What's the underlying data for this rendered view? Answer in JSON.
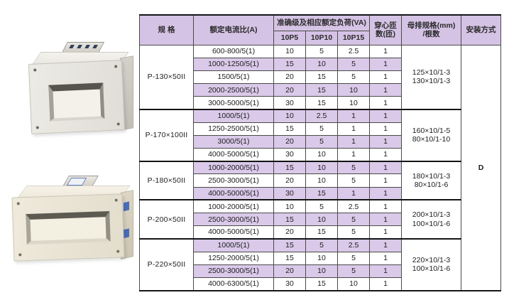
{
  "table": {
    "headers": {
      "spec": "规  格",
      "ratio": "额定电流比(A)",
      "accuracy_group": "准确级及相应额定负荷(VA)",
      "p5": "10P5",
      "p10": "10P10",
      "p15": "10P15",
      "turns_line1": "穿心匝",
      "turns_line2": "数(匝)",
      "busbar_line1": "母排规格(mm)",
      "busbar_line2": "/根数",
      "install": "安装方式"
    },
    "install_value": "D",
    "colors": {
      "band": "#dac9e9",
      "header_bg": "#d5c3e5",
      "grid": "#4a4a4a",
      "heavy_line": "#141414"
    },
    "groups": [
      {
        "spec": "P-130×50II",
        "busbar": [
          "125×10/1-3",
          "130×10/1-3"
        ],
        "rows": [
          {
            "ratio": "600-800/5(1)",
            "p5": "10",
            "p10": "5",
            "p15": "2.5",
            "turns": "1"
          },
          {
            "ratio": "1000-1250/5(1)",
            "p5": "15",
            "p10": "10",
            "p15": "5",
            "turns": "1"
          },
          {
            "ratio": "1500/5(1)",
            "p5": "20",
            "p10": "15",
            "p15": "5",
            "turns": "1"
          },
          {
            "ratio": "2000-2500/5(1)",
            "p5": "20",
            "p10": "15",
            "p15": "10",
            "turns": "1"
          },
          {
            "ratio": "3000-5000/5(1)",
            "p5": "30",
            "p10": "15",
            "p15": "10",
            "turns": "1"
          }
        ]
      },
      {
        "spec": "P-170×100II",
        "busbar": [
          "160×10/1-5",
          "80×10/1-10"
        ],
        "rows": [
          {
            "ratio": "1000/5(1)",
            "p5": "10",
            "p10": "2.5",
            "p15": "1",
            "turns": "1"
          },
          {
            "ratio": "1250-2500/5(1)",
            "p5": "15",
            "p10": "5",
            "p15": "1",
            "turns": "1"
          },
          {
            "ratio": "3000/5(1)",
            "p5": "20",
            "p10": "5",
            "p15": "1",
            "turns": "1"
          },
          {
            "ratio": "4000-5000/5(1)",
            "p5": "30",
            "p10": "10",
            "p15": "1",
            "turns": "1"
          }
        ]
      },
      {
        "spec": "P-180×50II",
        "busbar": [
          "180×10/1-3",
          "80×10/1-6"
        ],
        "rows": [
          {
            "ratio": "1000-2000/5(1)",
            "p5": "15",
            "p10": "10",
            "p15": "5",
            "turns": "1"
          },
          {
            "ratio": "2500-3000/5(1)",
            "p5": "20",
            "p10": "10",
            "p15": "5",
            "turns": "1"
          },
          {
            "ratio": "4000-5000/5(1)",
            "p5": "30",
            "p10": "15",
            "p15": "1",
            "turns": "1"
          }
        ]
      },
      {
        "spec": "P-200×50II",
        "busbar": [
          "200×10/1-3",
          "100×10/1-6"
        ],
        "rows": [
          {
            "ratio": "1000-2000/5(1)",
            "p5": "10",
            "p10": "5",
            "p15": "2.5",
            "turns": "1"
          },
          {
            "ratio": "2500-3000/5(1)",
            "p5": "15",
            "p10": "10",
            "p15": "5",
            "turns": "1"
          },
          {
            "ratio": "4000-5000/5(1)",
            "p5": "20",
            "p10": "15",
            "p15": "5",
            "turns": "1"
          }
        ]
      },
      {
        "spec": "P-220×50II",
        "busbar": [
          "220×10/1-3",
          "100×10/1-6"
        ],
        "rows": [
          {
            "ratio": "1000/5(1)",
            "p5": "15",
            "p10": "5",
            "p15": "2.5",
            "turns": "1"
          },
          {
            "ratio": "1250-2000/5(1)",
            "p5": "15",
            "p10": "10",
            "p15": "5",
            "turns": "1"
          },
          {
            "ratio": "2500-3000/5(1)",
            "p5": "20",
            "p10": "10",
            "p15": "5",
            "turns": "1"
          },
          {
            "ratio": "4000-6300/5(1)",
            "p5": "30",
            "p10": "15",
            "p15": "10",
            "turns": "1"
          }
        ]
      }
    ]
  },
  "photos": [
    {
      "name": "busbar-current-transformer-square"
    },
    {
      "name": "busbar-current-transformer-wide"
    }
  ]
}
